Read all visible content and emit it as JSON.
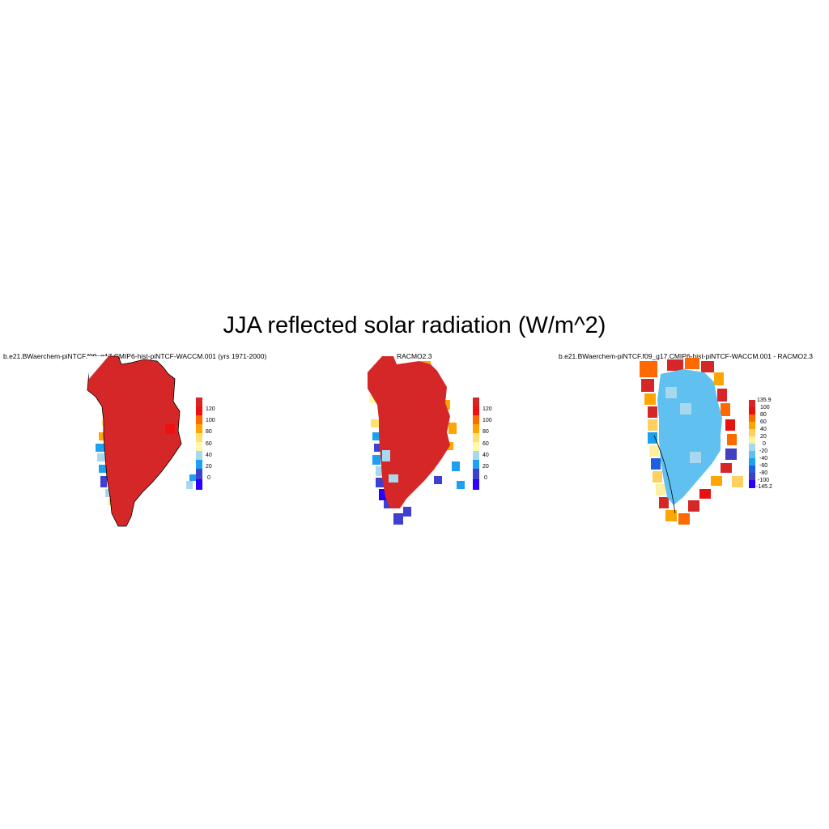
{
  "title": "JJA reflected solar radiation (W/m^2)",
  "panels": [
    {
      "id": "model",
      "title": "b.e21.BWaerchem-piNTCF.f09_g17.CMIP6-hist-piNTCF-WACCM.001 (yrs 1971-2000)",
      "colorbar": {
        "labels": [
          "120",
          "100",
          "80",
          "60",
          "40",
          "20",
          "0"
        ],
        "colors": [
          "#d62728",
          "#f01010",
          "#ff6a00",
          "#ffa500",
          "#ffe070",
          "#fff8a8",
          "#a8d8ee",
          "#1ea0f0",
          "#4040d0",
          "#2a00ff"
        ]
      }
    },
    {
      "id": "obs",
      "title": "RACMO2.3",
      "colorbar": {
        "labels": [
          "120",
          "100",
          "80",
          "60",
          "40",
          "20",
          "0"
        ],
        "colors": [
          "#d62728",
          "#f01010",
          "#ff6a00",
          "#ffa500",
          "#ffe070",
          "#fff8a8",
          "#a8d8ee",
          "#1ea0f0",
          "#4040d0",
          "#2a00ff"
        ]
      }
    },
    {
      "id": "diff",
      "title": "b.e21.BWaerchem-piNTCF.f09_g17.CMIP6-hist-piNTCF-WACCM.001 - RACMO2.3",
      "colorbar": {
        "labels": [
          "135.9",
          "100",
          "80",
          "60",
          "40",
          "20",
          "0",
          "-20",
          "-40",
          "-60",
          "-80",
          "-100",
          "-145.2"
        ],
        "colors": [
          "#d62728",
          "#e81010",
          "#ff6a00",
          "#ffa500",
          "#ffd060",
          "#fff0a0",
          "#a8d8ee",
          "#60c0f0",
          "#1ea0f0",
          "#2060e0",
          "#4040c0",
          "#2a00ff"
        ]
      }
    }
  ]
}
